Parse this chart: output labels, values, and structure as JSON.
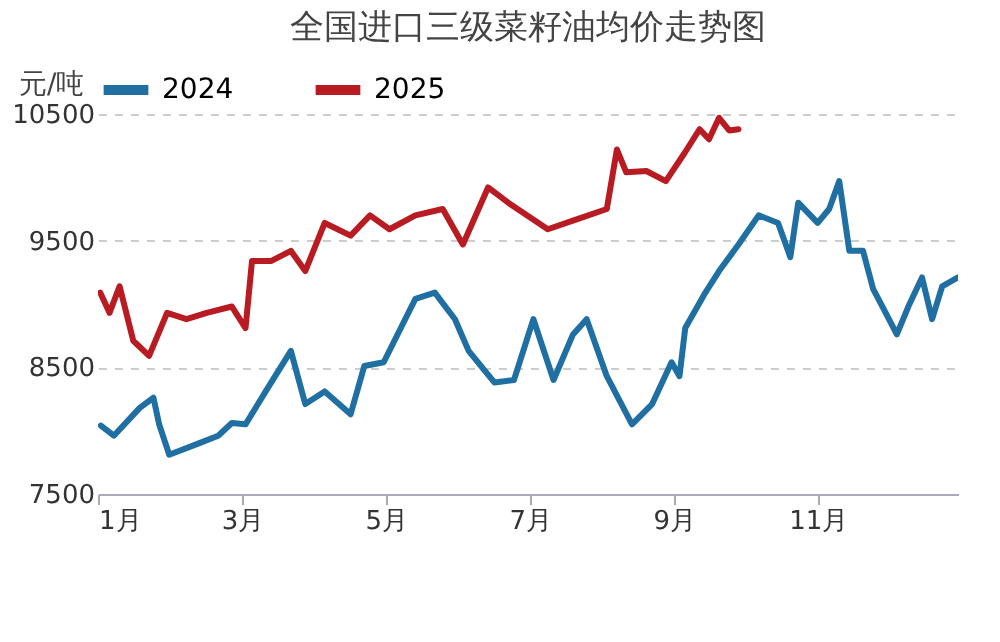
{
  "chart_data": {
    "type": "line",
    "title": "全国进口三级菜籽油均价走势图",
    "ylabel": "元/吨",
    "xlim": [
      1,
      12.95
    ],
    "xticks": [
      {
        "value": 1,
        "label": "1月"
      },
      {
        "value": 3,
        "label": "3月"
      },
      {
        "value": 5,
        "label": "5月"
      },
      {
        "value": 7,
        "label": "7月"
      },
      {
        "value": 9,
        "label": "9月"
      },
      {
        "value": 11,
        "label": "11月"
      }
    ],
    "ylim": [
      7500,
      10500
    ],
    "yticks": [
      7500,
      8500,
      9500,
      10500
    ],
    "grid": "y",
    "legend": "top",
    "line_style": "solid",
    "marker": "none",
    "series": [
      {
        "name": "2024",
        "color": "#1f6fa3",
        "x": [
          1.04,
          1.22,
          1.58,
          1.77,
          1.85,
          1.99,
          2.4,
          2.67,
          2.86,
          3.05,
          3.33,
          3.68,
          3.88,
          4.15,
          4.51,
          4.7,
          4.97,
          5.41,
          5.68,
          5.96,
          6.15,
          6.51,
          6.78,
          7.05,
          7.33,
          7.6,
          7.79,
          8.07,
          8.42,
          8.7,
          8.97,
          9.08,
          9.16,
          9.44,
          9.63,
          9.9,
          10.18,
          10.45,
          10.62,
          10.73,
          11,
          11.16,
          11.3,
          11.44,
          11.63,
          11.77,
          11.9,
          12.1,
          12.26,
          12.45,
          12.59,
          12.73,
          12.95
        ],
        "values": [
          8040,
          7960,
          8180,
          8260,
          8050,
          7810,
          7900,
          7960,
          8060,
          8050,
          8310,
          8630,
          8210,
          8310,
          8130,
          8510,
          8540,
          9040,
          9090,
          8880,
          8630,
          8380,
          8400,
          8880,
          8400,
          8760,
          8880,
          8430,
          8050,
          8210,
          8540,
          8430,
          8810,
          9090,
          9260,
          9470,
          9700,
          9640,
          9370,
          9800,
          9640,
          9750,
          9970,
          9420,
          9420,
          9120,
          8980,
          8760,
          8980,
          9210,
          8880,
          9140,
          9210
        ]
      },
      {
        "name": "2025",
        "color": "#b81c22",
        "x": [
          1.03,
          1.16,
          1.3,
          1.49,
          1.71,
          1.96,
          2.23,
          2.51,
          2.86,
          3.05,
          3.14,
          3.41,
          3.68,
          3.88,
          4.15,
          4.51,
          4.78,
          5.05,
          5.41,
          5.79,
          6.07,
          6.42,
          6.7,
          7.25,
          7.66,
          8.07,
          8.21,
          8.34,
          8.62,
          8.89,
          9.16,
          9.36,
          9.49,
          9.63,
          9.77,
          9.9
        ],
        "values": [
          9090,
          8930,
          9140,
          8710,
          8590,
          8930,
          8880,
          8930,
          8980,
          8810,
          9340,
          9340,
          9420,
          9260,
          9640,
          9540,
          9700,
          9590,
          9700,
          9750,
          9470,
          9920,
          9800,
          9590,
          9670,
          9750,
          10220,
          10040,
          10050,
          9970,
          10200,
          10380,
          10300,
          10470,
          10370,
          10380
        ]
      }
    ]
  }
}
